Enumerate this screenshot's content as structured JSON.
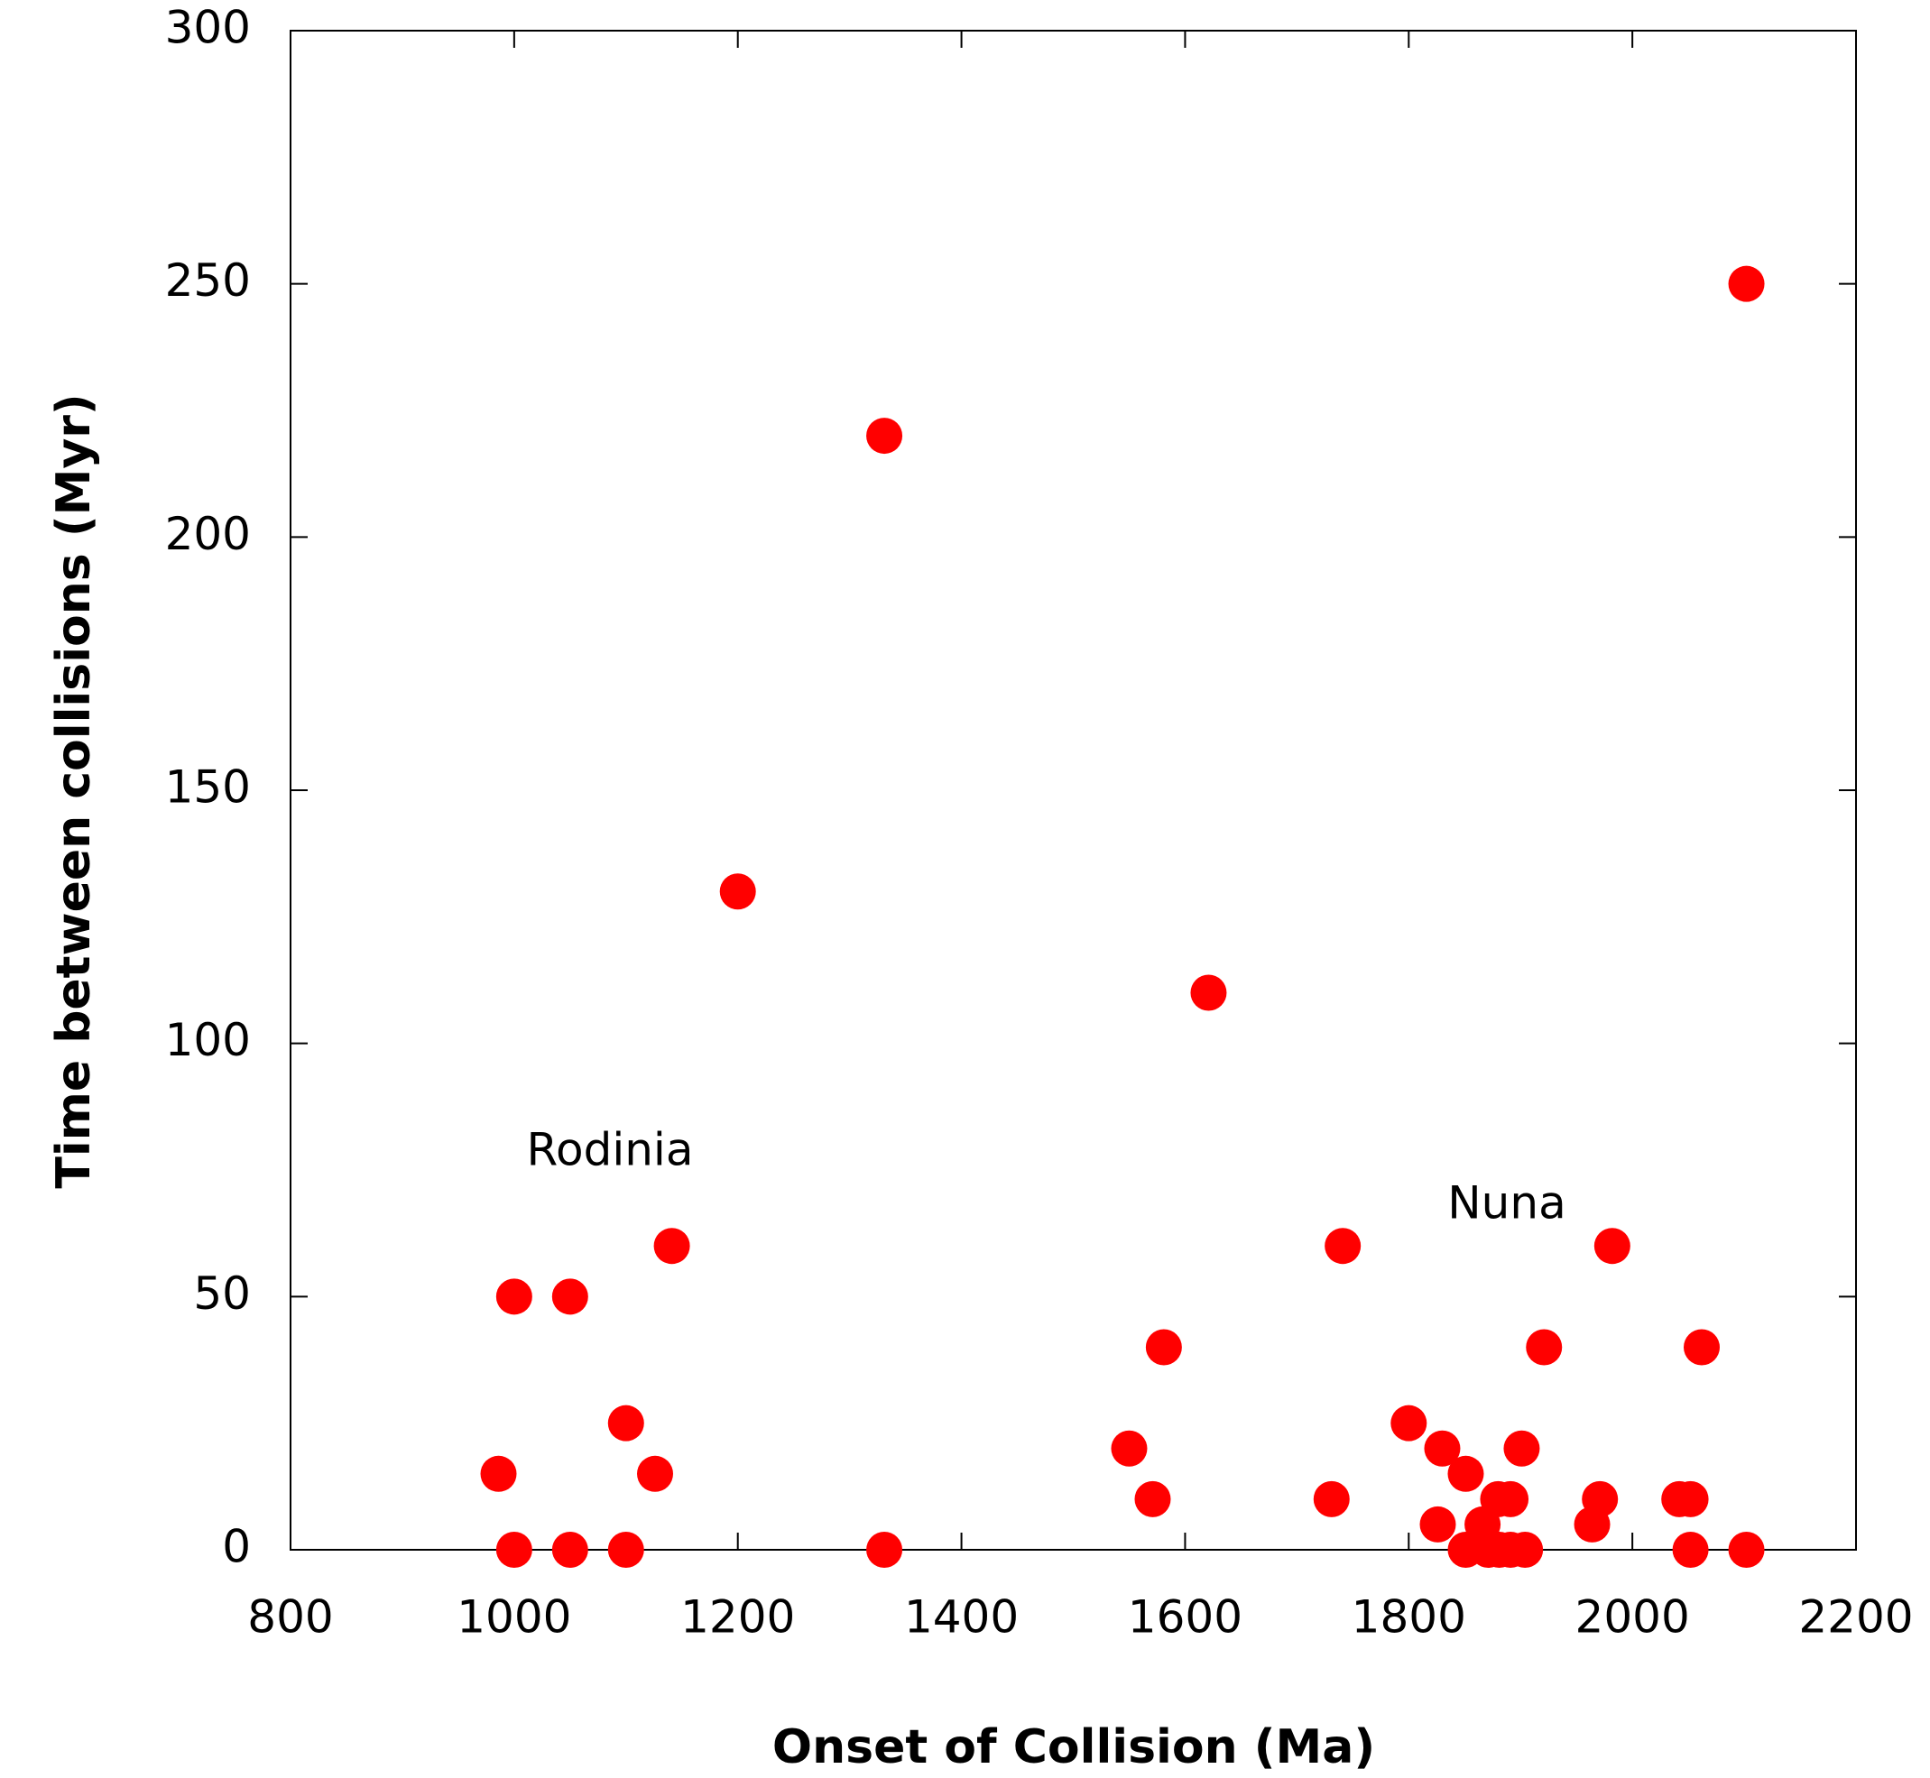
{
  "chart_data": {
    "type": "scatter",
    "xlabel": "Onset of Collision (Ma)",
    "ylabel": "Time between collisions (Myr)",
    "annotations": [
      "Rodinia",
      "Nuna"
    ],
    "xlim": [
      800,
      2200
    ],
    "xticks": [
      800,
      1000,
      1200,
      1400,
      1600,
      1800,
      2000,
      2200
    ],
    "ylim": [
      0,
      300
    ],
    "yticks": [
      0,
      50,
      100,
      150,
      200,
      250,
      300
    ],
    "grid": false,
    "series": [
      {
        "color": "#ff0000",
        "x": [
          986,
          1000,
          1000,
          1050,
          1050,
          1100,
          1100,
          1126,
          1141,
          1200,
          1331,
          1331,
          1550,
          1571,
          1581,
          1621,
          1731,
          1741,
          1800,
          1826,
          1830,
          1851,
          1851,
          1866,
          1871,
          1880,
          1881,
          1891,
          1891,
          1901,
          1904,
          1921,
          1964,
          1971,
          1982,
          2042,
          2052,
          2052,
          2062,
          2102,
          2102
        ],
        "values": [
          15,
          50,
          0,
          50,
          0,
          25,
          0,
          15,
          60,
          130,
          220,
          0,
          20,
          10,
          40,
          110,
          10,
          60,
          25,
          5,
          20,
          15,
          0,
          5,
          0,
          10,
          0,
          10,
          0,
          20,
          0,
          40,
          5,
          10,
          60,
          10,
          10,
          0,
          40,
          0,
          250
        ]
      }
    ]
  }
}
